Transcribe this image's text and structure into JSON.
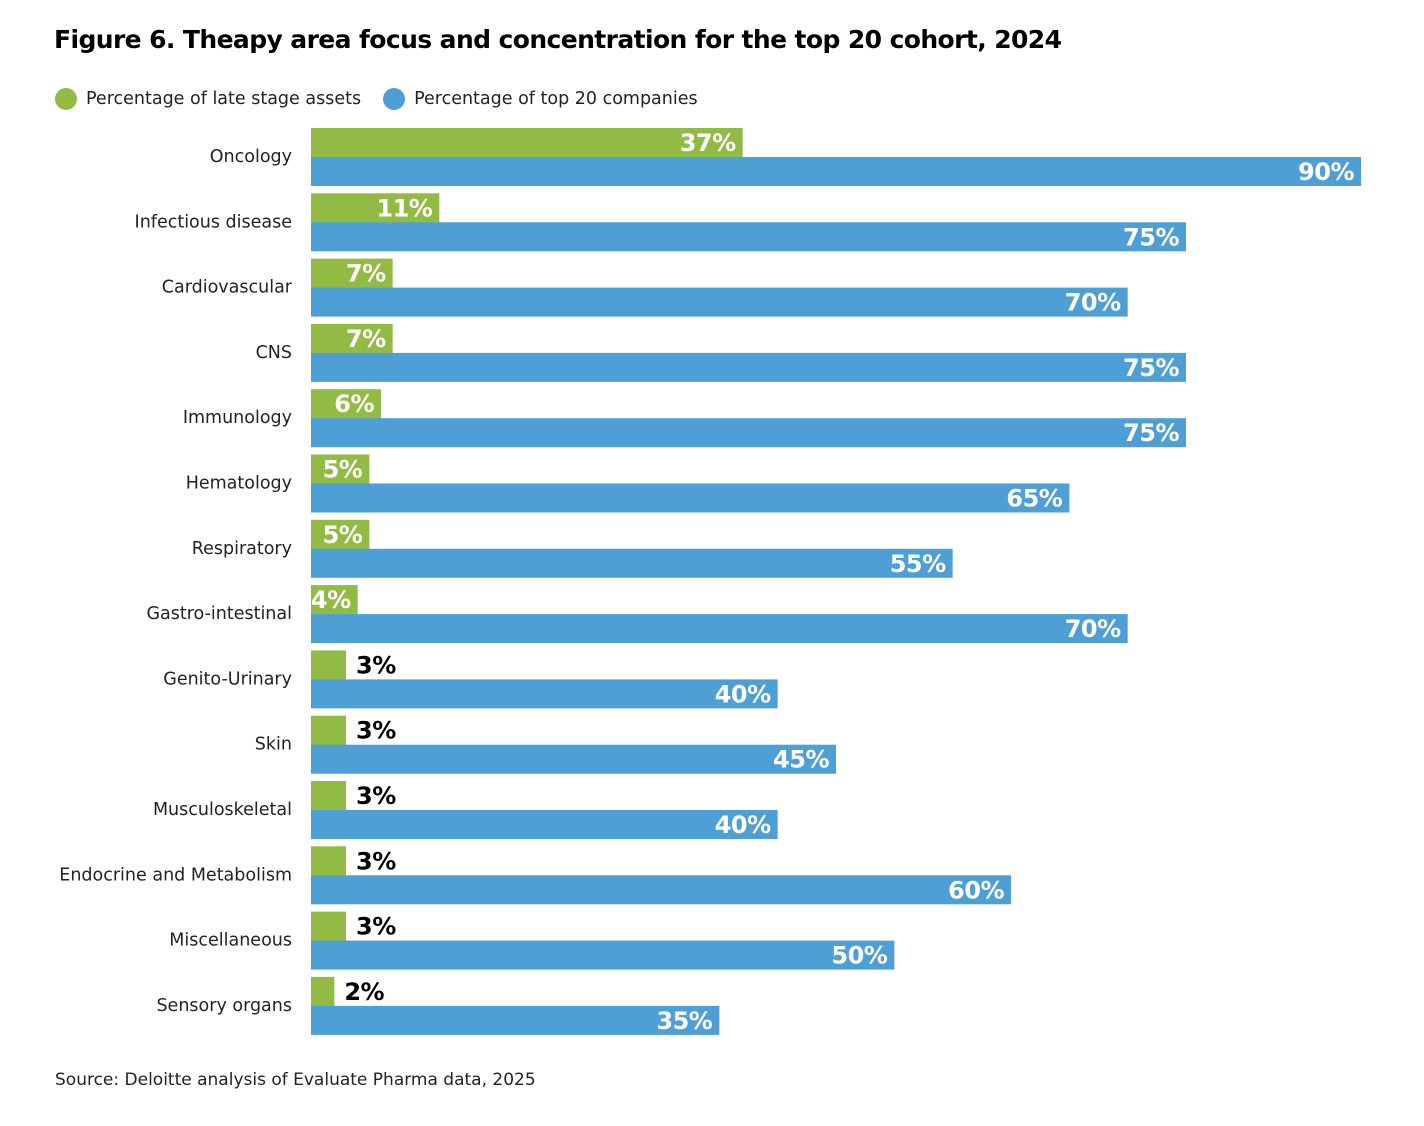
{
  "title": "Figure 6. Theapy area focus and concentration for the top 20 cohort, 2024",
  "source": "Source: Deloitte analysis of Evaluate Pharma data, 2025",
  "colors": {
    "late_stage": "#92bb44",
    "top20": "#4e9fd6"
  },
  "chart_data": {
    "type": "bar",
    "orientation": "horizontal",
    "title": "Figure 6. Theapy area focus and concentration for the top 20 cohort, 2024",
    "legend_placement": "top-left",
    "grid": false,
    "xlim": [
      0,
      90
    ],
    "categories": [
      "Oncology",
      "Infectious disease",
      "Cardiovascular",
      "CNS",
      "Immunology",
      "Hematology",
      "Respiratory",
      "Gastro-intestinal",
      "Genito-Urinary",
      "Skin",
      "Musculoskeletal",
      "Endocrine and Metabolism",
      "Miscellaneous",
      "Sensory organs"
    ],
    "series": [
      {
        "name": "Percentage of late stage assets",
        "color": "#92bb44",
        "values": [
          37,
          11,
          7,
          7,
          6,
          5,
          5,
          4,
          3,
          3,
          3,
          3,
          3,
          2
        ]
      },
      {
        "name": "Percentage of top 20 companies",
        "color": "#4e9fd6",
        "values": [
          90,
          75,
          70,
          75,
          75,
          65,
          55,
          70,
          40,
          45,
          40,
          60,
          50,
          35
        ]
      }
    ],
    "value_suffix": "%"
  }
}
